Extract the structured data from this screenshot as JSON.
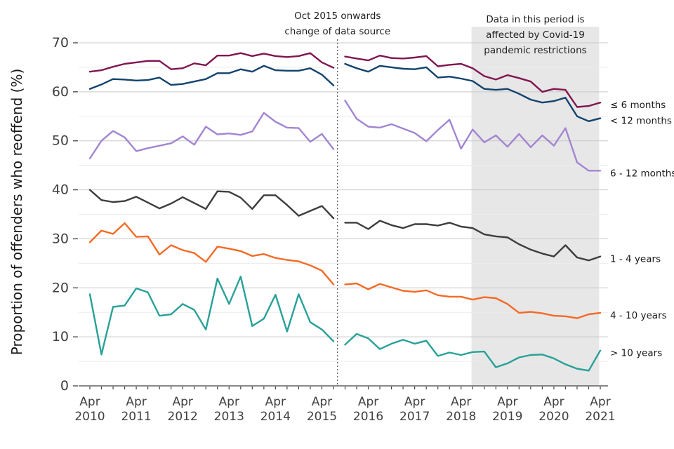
{
  "chart_data": {
    "type": "line",
    "title": "",
    "xlabel": "",
    "ylabel": "Proportion of offenders who reoffend (%)",
    "ylim": [
      0,
      70
    ],
    "y_major_ticks": [
      0,
      10,
      20,
      30,
      40,
      50,
      60,
      70
    ],
    "y_minor_ticks": [
      5,
      15,
      25,
      35,
      45,
      55,
      65
    ],
    "grid": "horizontal",
    "legend_position": "right-edge-labels",
    "x_unit": "quarters",
    "quarters_total": 45,
    "x_tick_labels": [
      {
        "top": "Apr",
        "bottom": "2010"
      },
      {
        "top": "Apr",
        "bottom": "2011"
      },
      {
        "top": "Apr",
        "bottom": "2012"
      },
      {
        "top": "Apr",
        "bottom": "2013"
      },
      {
        "top": "Apr",
        "bottom": "2014"
      },
      {
        "top": "Apr",
        "bottom": "2015"
      },
      {
        "top": "Apr",
        "bottom": "2016"
      },
      {
        "top": "Apr",
        "bottom": "2017"
      },
      {
        "top": "Apr",
        "bottom": "2018"
      },
      {
        "top": "Apr",
        "bottom": "2019"
      },
      {
        "top": "Apr",
        "bottom": "2020"
      },
      {
        "top": "Apr",
        "bottom": "2021"
      }
    ],
    "annotations": {
      "data_source_note": {
        "lines": [
          "Oct 2015 onwards",
          "change of data source"
        ],
        "x_quarter": 21.35,
        "line_style": "dotted-vertical"
      },
      "covid_note": {
        "lines": [
          "Data in this period is",
          "affected by Covid-19",
          "pandemic restrictions"
        ]
      },
      "covid_region": {
        "start_quarter": 32.9,
        "end_quarter": 43.9,
        "fill": "#e7e7e7"
      }
    },
    "series": [
      {
        "name": "≤ 6 months",
        "color": "#801650",
        "segments": [
          {
            "start_quarter": 0,
            "period": "Apr 2010 - Jul 2015",
            "values": [
              64.1,
              64.4,
              65.1,
              65.7,
              66.0,
              66.3,
              66.3,
              64.6,
              64.8,
              65.8,
              65.4,
              67.4,
              67.4,
              67.9,
              67.3,
              67.8,
              67.3,
              67.1,
              67.3,
              67.9,
              66.0,
              64.9
            ]
          },
          {
            "start_quarter": 22,
            "period": "Oct 2015 - Apr 2021",
            "values": [
              67.2,
              66.8,
              66.4,
              67.4,
              66.9,
              66.8,
              67.0,
              67.3,
              65.2,
              65.5,
              65.7,
              64.8,
              63.2,
              62.5,
              63.4,
              62.8,
              62.1,
              60.0,
              60.6,
              60.4,
              56.9,
              57.1,
              57.8
            ]
          }
        ]
      },
      {
        "name": "< 12 months",
        "color": "#12436D",
        "segments": [
          {
            "start_quarter": 0,
            "period": "Apr 2010 - Jul 2015",
            "values": [
              60.6,
              61.5,
              62.6,
              62.5,
              62.3,
              62.4,
              62.9,
              61.4,
              61.6,
              62.1,
              62.6,
              63.8,
              63.8,
              64.6,
              64.1,
              65.3,
              64.4,
              64.3,
              64.3,
              64.8,
              63.5,
              61.3
            ]
          },
          {
            "start_quarter": 22,
            "period": "Oct 2015 - Apr 2021",
            "values": [
              65.7,
              64.8,
              64.1,
              65.3,
              65.0,
              64.7,
              64.6,
              65.0,
              62.9,
              63.1,
              62.7,
              62.2,
              60.6,
              60.4,
              60.6,
              59.6,
              58.4,
              57.8,
              58.1,
              58.8,
              55.0,
              54.0,
              54.6
            ]
          }
        ]
      },
      {
        "name": "6 - 12 months",
        "color": "#A285D1",
        "segments": [
          {
            "start_quarter": 0,
            "period": "Apr 2010 - Jul 2015",
            "values": [
              46.4,
              50.0,
              52.0,
              50.7,
              47.9,
              48.5,
              49.0,
              49.5,
              50.9,
              49.2,
              52.9,
              51.3,
              51.5,
              51.2,
              51.9,
              55.7,
              53.9,
              52.7,
              52.6,
              49.8,
              51.4,
              48.3
            ]
          },
          {
            "start_quarter": 22,
            "period": "Oct 2015 - Apr 2021",
            "values": [
              58.2,
              54.5,
              52.9,
              52.7,
              53.4,
              52.5,
              51.6,
              49.9,
              52.2,
              54.3,
              48.4,
              52.3,
              49.7,
              51.1,
              48.8,
              51.4,
              48.7,
              51.1,
              49.0,
              52.6,
              45.6,
              43.9,
              43.9
            ]
          }
        ]
      },
      {
        "name": "1 - 4 years",
        "color": "#3D3D3D",
        "segments": [
          {
            "start_quarter": 0,
            "period": "Apr 2010 - Jul 2015",
            "values": [
              40.0,
              37.9,
              37.5,
              37.7,
              38.6,
              37.4,
              36.2,
              37.2,
              38.5,
              37.3,
              36.1,
              39.7,
              39.6,
              38.4,
              36.1,
              38.9,
              38.9,
              36.9,
              34.7,
              35.7,
              36.7,
              34.2
            ]
          },
          {
            "start_quarter": 22,
            "period": "Oct 2015 - Apr 2021",
            "values": [
              33.3,
              33.3,
              32.0,
              33.7,
              32.8,
              32.2,
              33.0,
              33.0,
              32.7,
              33.3,
              32.5,
              32.2,
              30.9,
              30.5,
              30.3,
              28.9,
              27.8,
              27.0,
              26.4,
              28.7,
              26.2,
              25.6,
              26.4
            ]
          }
        ]
      },
      {
        "name": "4 - 10 years",
        "color": "#F46A25",
        "segments": [
          {
            "start_quarter": 0,
            "period": "Apr 2010 - Jul 2015",
            "values": [
              29.3,
              31.7,
              31.0,
              33.2,
              30.4,
              30.5,
              26.8,
              28.7,
              27.7,
              27.1,
              25.3,
              28.4,
              28.0,
              27.5,
              26.5,
              26.9,
              26.1,
              25.7,
              25.4,
              24.6,
              23.5,
              20.7
            ]
          },
          {
            "start_quarter": 22,
            "period": "Oct 2015 - Apr 2021",
            "values": [
              20.7,
              20.9,
              19.7,
              20.8,
              20.1,
              19.4,
              19.2,
              19.5,
              18.5,
              18.2,
              18.2,
              17.6,
              18.1,
              17.9,
              16.7,
              14.9,
              15.1,
              14.8,
              14.3,
              14.2,
              13.8,
              14.6,
              14.9
            ]
          }
        ]
      },
      {
        "name": "> 10 years",
        "color": "#28A197",
        "segments": [
          {
            "start_quarter": 0,
            "period": "Apr 2010 - Jul 2015",
            "values": [
              18.7,
              6.4,
              16.1,
              16.4,
              19.9,
              19.1,
              14.3,
              14.6,
              16.7,
              15.5,
              11.5,
              21.9,
              16.7,
              22.3,
              12.2,
              13.7,
              18.6,
              11.1,
              18.7,
              13.0,
              11.5,
              9.1
            ]
          },
          {
            "start_quarter": 22,
            "period": "Oct 2015 - Apr 2021",
            "values": [
              8.4,
              10.6,
              9.7,
              7.5,
              8.6,
              9.4,
              8.6,
              9.2,
              6.1,
              6.8,
              6.3,
              6.9,
              7.0,
              3.8,
              4.6,
              5.8,
              6.3,
              6.4,
              5.6,
              4.4,
              3.5,
              3.1,
              7.2
            ]
          }
        ]
      }
    ],
    "colors": {
      "major_gridline": "#c9c9c9",
      "minor_gridline": "#ececec",
      "axis_line": "#404040",
      "tick_label": "#414042",
      "annotation_text": "#1f1f1f",
      "series_label_text": "#1a1a1a"
    }
  }
}
